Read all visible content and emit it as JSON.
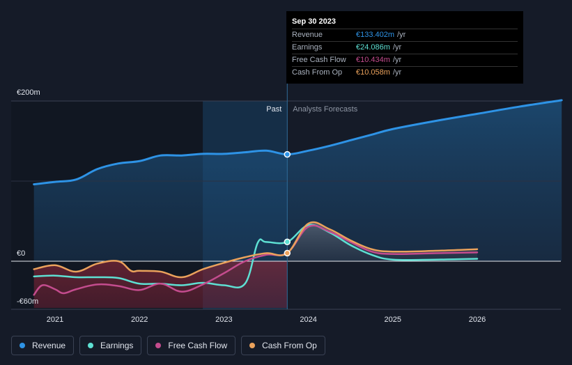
{
  "chart_data": {
    "type": "line",
    "x_ticks": [
      "2021",
      "2022",
      "2023",
      "2024",
      "2025",
      "2026"
    ],
    "y_ticks": [
      {
        "label": "€200m",
        "value": 200
      },
      {
        "label": "€0",
        "value": 0
      },
      {
        "label": "-€60m",
        "value": -60
      }
    ],
    "ylim": [
      -60,
      200
    ],
    "divider_date": 2023.75,
    "past_label": "Past",
    "forecast_label": "Analysts Forecasts",
    "series": [
      {
        "name": "Revenue",
        "color": "#2e93e6",
        "x": [
          2020.75,
          2021.0,
          2021.25,
          2021.5,
          2021.75,
          2022.0,
          2022.25,
          2022.5,
          2022.75,
          2023.0,
          2023.25,
          2023.5,
          2023.75,
          2024.0,
          2024.25,
          2024.5,
          2024.75,
          2025.0,
          2025.5,
          2026.0,
          2026.5,
          2027.0
        ],
        "y": [
          96,
          99,
          102,
          115,
          122,
          125,
          132,
          132,
          134,
          134,
          136,
          138,
          133.4,
          138,
          144,
          151,
          158,
          165,
          175,
          184,
          193,
          201
        ]
      },
      {
        "name": "Earnings",
        "color": "#5ee0d3",
        "x": [
          2020.75,
          2021.0,
          2021.25,
          2021.5,
          2021.75,
          2022.0,
          2022.25,
          2022.5,
          2022.75,
          2023.0,
          2023.25,
          2023.4,
          2023.5,
          2023.75,
          2024.0,
          2024.25,
          2024.5,
          2024.75,
          2025.0,
          2025.5,
          2026.0
        ],
        "y": [
          -19,
          -18,
          -20,
          -20,
          -21,
          -28,
          -28,
          -30,
          -27,
          -30,
          -28,
          23,
          24,
          24.1,
          45,
          36,
          20,
          8,
          2,
          2,
          3
        ]
      },
      {
        "name": "Free Cash Flow",
        "color": "#c44c8e",
        "x": [
          2020.75,
          2020.85,
          2021.0,
          2021.1,
          2021.25,
          2021.5,
          2021.75,
          2022.0,
          2022.25,
          2022.5,
          2022.75,
          2023.0,
          2023.25,
          2023.5,
          2023.75,
          2024.0,
          2024.25,
          2024.5,
          2024.75,
          2025.0,
          2025.5,
          2026.0
        ],
        "y": [
          -42,
          -30,
          -35,
          -40,
          -35,
          -29,
          -31,
          -36,
          -28,
          -38,
          -29,
          -15,
          0,
          8,
          10.4,
          43,
          37,
          24,
          12,
          9,
          10,
          11
        ]
      },
      {
        "name": "Cash From Op",
        "color": "#eba25c",
        "x": [
          2020.75,
          2021.0,
          2021.25,
          2021.5,
          2021.75,
          2021.9,
          2022.0,
          2022.25,
          2022.5,
          2022.75,
          2023.0,
          2023.25,
          2023.5,
          2023.75,
          2024.0,
          2024.25,
          2024.5,
          2024.75,
          2025.0,
          2025.5,
          2026.0
        ],
        "y": [
          -10,
          -5,
          -13,
          -3,
          0,
          -12,
          -12,
          -13,
          -20,
          -10,
          -2,
          5,
          10,
          10.1,
          47,
          40,
          26,
          15,
          12,
          13,
          15
        ]
      }
    ],
    "tooltip": {
      "date": "Sep 30 2023",
      "rows": [
        {
          "label": "Revenue",
          "value": "€133.402m",
          "unit": "/yr",
          "color": "#2e93e6"
        },
        {
          "label": "Earnings",
          "value": "€24.086m",
          "unit": "/yr",
          "color": "#5ee0d3"
        },
        {
          "label": "Free Cash Flow",
          "value": "€10.434m",
          "unit": "/yr",
          "color": "#c44c8e"
        },
        {
          "label": "Cash From Op",
          "value": "€10.058m",
          "unit": "/yr",
          "color": "#eba25c"
        }
      ]
    },
    "legend": [
      {
        "label": "Revenue",
        "color": "#2e93e6"
      },
      {
        "label": "Earnings",
        "color": "#5ee0d3"
      },
      {
        "label": "Free Cash Flow",
        "color": "#c44c8e"
      },
      {
        "label": "Cash From Op",
        "color": "#eba25c"
      }
    ]
  }
}
